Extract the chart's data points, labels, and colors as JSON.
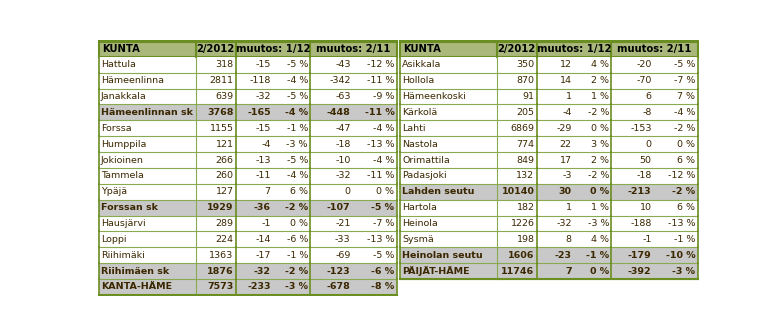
{
  "left_rows": [
    {
      "name": "Hattula",
      "v": "318",
      "c1": "-15",
      "p1": "-5 %",
      "c2": "-43",
      "p2": "-12 %",
      "bold": false,
      "gray": false
    },
    {
      "name": "Hämeenlinna",
      "v": "2811",
      "c1": "-118",
      "p1": "-4 %",
      "c2": "-342",
      "p2": "-11 %",
      "bold": false,
      "gray": false
    },
    {
      "name": "Janakkala",
      "v": "639",
      "c1": "-32",
      "p1": "-5 %",
      "c2": "-63",
      "p2": "-9 %",
      "bold": false,
      "gray": false
    },
    {
      "name": "Hämeenlinnan sk",
      "v": "3768",
      "c1": "-165",
      "p1": "-4 %",
      "c2": "-448",
      "p2": "-11 %",
      "bold": true,
      "gray": true
    },
    {
      "name": "Forssa",
      "v": "1155",
      "c1": "-15",
      "p1": "-1 %",
      "c2": "-47",
      "p2": "-4 %",
      "bold": false,
      "gray": false
    },
    {
      "name": "Humppila",
      "v": "121",
      "c1": "-4",
      "p1": "-3 %",
      "c2": "-18",
      "p2": "-13 %",
      "bold": false,
      "gray": false
    },
    {
      "name": "Jokioinen",
      "v": "266",
      "c1": "-13",
      "p1": "-5 %",
      "c2": "-10",
      "p2": "-4 %",
      "bold": false,
      "gray": false
    },
    {
      "name": "Tammela",
      "v": "260",
      "c1": "-11",
      "p1": "-4 %",
      "c2": "-32",
      "p2": "-11 %",
      "bold": false,
      "gray": false
    },
    {
      "name": "Ypäjä",
      "v": "127",
      "c1": "7",
      "p1": "6 %",
      "c2": "0",
      "p2": "0 %",
      "bold": false,
      "gray": false
    },
    {
      "name": "Forssan sk",
      "v": "1929",
      "c1": "-36",
      "p1": "-2 %",
      "c2": "-107",
      "p2": "-5 %",
      "bold": true,
      "gray": true
    },
    {
      "name": "Hausjärvi",
      "v": "289",
      "c1": "-1",
      "p1": "0 %",
      "c2": "-21",
      "p2": "-7 %",
      "bold": false,
      "gray": false
    },
    {
      "name": "Loppi",
      "v": "224",
      "c1": "-14",
      "p1": "-6 %",
      "c2": "-33",
      "p2": "-13 %",
      "bold": false,
      "gray": false
    },
    {
      "name": "Riihimäki",
      "v": "1363",
      "c1": "-17",
      "p1": "-1 %",
      "c2": "-69",
      "p2": "-5 %",
      "bold": false,
      "gray": false
    },
    {
      "name": "Riihimäen sk",
      "v": "1876",
      "c1": "-32",
      "p1": "-2 %",
      "c2": "-123",
      "p2": "-6 %",
      "bold": true,
      "gray": true
    },
    {
      "name": "KANTA-HÄME",
      "v": "7573",
      "c1": "-233",
      "p1": "-3 %",
      "c2": "-678",
      "p2": "-8 %",
      "bold": true,
      "gray": true
    }
  ],
  "right_rows": [
    {
      "name": "Asikkala",
      "v": "350",
      "c1": "12",
      "p1": "4 %",
      "c2": "-20",
      "p2": "-5 %",
      "bold": false,
      "gray": false
    },
    {
      "name": "Hollola",
      "v": "870",
      "c1": "14",
      "p1": "2 %",
      "c2": "-70",
      "p2": "-7 %",
      "bold": false,
      "gray": false
    },
    {
      "name": "Hämeenkoski",
      "v": "91",
      "c1": "1",
      "p1": "1 %",
      "c2": "6",
      "p2": "7 %",
      "bold": false,
      "gray": false
    },
    {
      "name": "Kärkolä",
      "v": "205",
      "c1": "-4",
      "p1": "-2 %",
      "c2": "-8",
      "p2": "-4 %",
      "bold": false,
      "gray": false
    },
    {
      "name": "Lahti",
      "v": "6869",
      "c1": "-29",
      "p1": "0 %",
      "c2": "-153",
      "p2": "-2 %",
      "bold": false,
      "gray": false
    },
    {
      "name": "Nastola",
      "v": "774",
      "c1": "22",
      "p1": "3 %",
      "c2": "0",
      "p2": "0 %",
      "bold": false,
      "gray": false
    },
    {
      "name": "Orimattila",
      "v": "849",
      "c1": "17",
      "p1": "2 %",
      "c2": "50",
      "p2": "6 %",
      "bold": false,
      "gray": false
    },
    {
      "name": "Padasjoki",
      "v": "132",
      "c1": "-3",
      "p1": "-2 %",
      "c2": "-18",
      "p2": "-12 %",
      "bold": false,
      "gray": false
    },
    {
      "name": "Lahden seutu",
      "v": "10140",
      "c1": "30",
      "p1": "0 %",
      "c2": "-213",
      "p2": "-2 %",
      "bold": true,
      "gray": true
    },
    {
      "name": "Hartola",
      "v": "182",
      "c1": "1",
      "p1": "1 %",
      "c2": "10",
      "p2": "6 %",
      "bold": false,
      "gray": false
    },
    {
      "name": "Heinola",
      "v": "1226",
      "c1": "-32",
      "p1": "-3 %",
      "c2": "-188",
      "p2": "-13 %",
      "bold": false,
      "gray": false
    },
    {
      "name": "Sysmä",
      "v": "198",
      "c1": "8",
      "p1": "4 %",
      "c2": "-1",
      "p2": "-1 %",
      "bold": false,
      "gray": false
    },
    {
      "name": "Heinolan seutu",
      "v": "1606",
      "c1": "-23",
      "p1": "-1 %",
      "c2": "-179",
      "p2": "-10 %",
      "bold": true,
      "gray": true
    },
    {
      "name": "PÄIJÄT-HÄME",
      "v": "11746",
      "c1": "7",
      "p1": "0 %",
      "c2": "-392",
      "p2": "-3 %",
      "bold": true,
      "gray": true
    }
  ],
  "header_bg": "#aab87c",
  "gray_bg": "#c8c8c8",
  "white_bg": "#ffffff",
  "outer_border": "#6b8e23",
  "inner_border": "#8aaa50",
  "text_color": "#3b2800",
  "header_text": "#000000",
  "fontsize": 6.8,
  "header_fontsize": 7.2
}
